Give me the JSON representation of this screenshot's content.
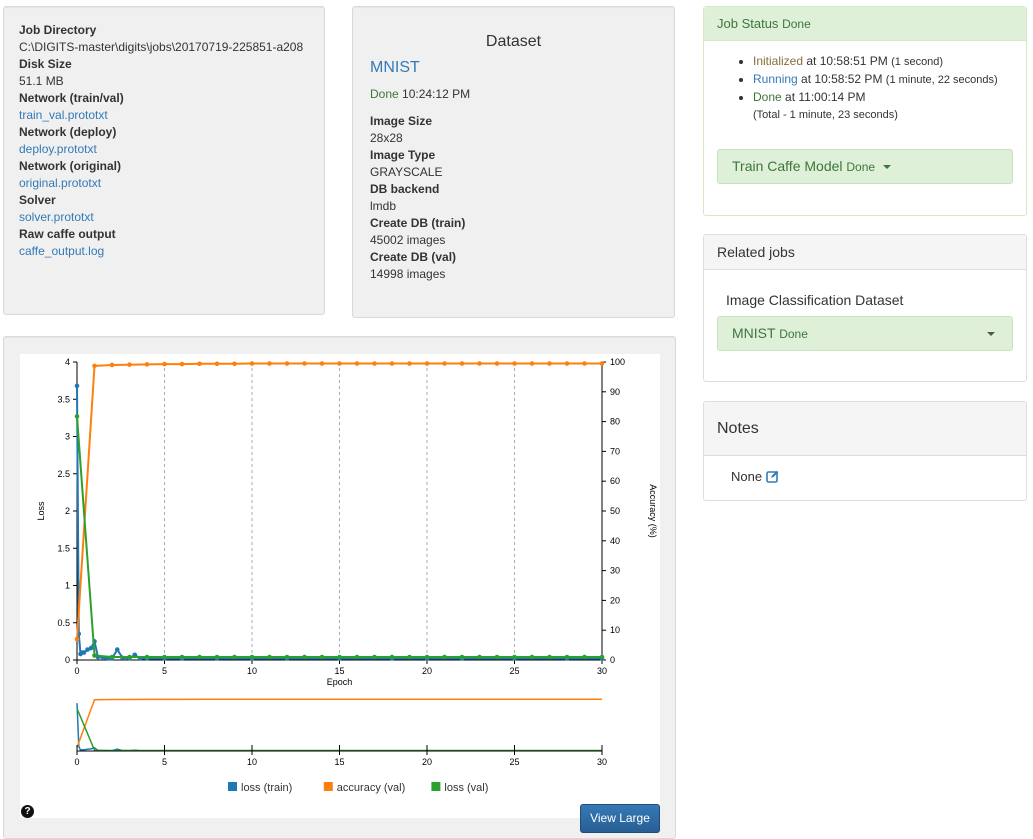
{
  "job_info": {
    "items": [
      {
        "label": "Job Directory",
        "value": "C:\\DIGITS-master\\digits\\jobs\\20170719-225851-a208",
        "is_link": false
      },
      {
        "label": "Disk Size",
        "value": "51.1 MB",
        "is_link": false
      },
      {
        "label": "Network (train/val)",
        "value": "train_val.prototxt",
        "is_link": true
      },
      {
        "label": "Network (deploy)",
        "value": "deploy.prototxt",
        "is_link": true
      },
      {
        "label": "Network (original)",
        "value": "original.prototxt",
        "is_link": true
      },
      {
        "label": "Solver",
        "value": "solver.prototxt",
        "is_link": true
      },
      {
        "label": "Raw caffe output",
        "value": "caffe_output.log",
        "is_link": true
      }
    ]
  },
  "dataset": {
    "heading": "Dataset",
    "name": "MNIST",
    "status": "Done",
    "time": "10:24:12 PM",
    "items": [
      {
        "label": "Image Size",
        "value": "28x28"
      },
      {
        "label": "Image Type",
        "value": "GRAYSCALE"
      },
      {
        "label": "DB backend",
        "value": "lmdb"
      },
      {
        "label": "Create DB (train)",
        "value": "45002 images"
      },
      {
        "label": "Create DB (val)",
        "value": "14998 images"
      }
    ]
  },
  "job_status": {
    "title": "Job Status",
    "status": "Done",
    "history": [
      {
        "state": "Initialized",
        "at": "at 10:58:51 PM",
        "duration": "(1 second)"
      },
      {
        "state": "Running",
        "at": "at 10:58:52 PM",
        "duration": "(1 minute, 22 seconds)"
      },
      {
        "state": "Done",
        "at": "at 11:00:14 PM",
        "duration": "(Total - 1 minute, 23 seconds)"
      }
    ],
    "task_button": {
      "label": "Train Caffe Model",
      "status": "Done"
    }
  },
  "related_jobs": {
    "title": "Related jobs",
    "label": "Image Classification Dataset",
    "button": {
      "label": "MNIST",
      "status": "Done"
    }
  },
  "notes": {
    "title": "Notes",
    "value": "None"
  },
  "graph": {
    "view_large_label": "View Large",
    "help_glyph": "?"
  },
  "colors": {
    "loss_train": "#1f77b4",
    "accuracy_val": "#ff7f0e",
    "loss_val": "#2ca02c"
  },
  "chart_data": {
    "type": "line",
    "xlabel": "Epoch",
    "ylabel": "Loss",
    "y2label": "Accuracy (%)",
    "xlim": [
      0,
      30
    ],
    "ylim": [
      0,
      4
    ],
    "y2lim": [
      0,
      100
    ],
    "x_ticks": [
      0,
      5,
      10,
      15,
      20,
      25,
      30
    ],
    "y_ticks": [
      "0",
      "0.5",
      "1",
      "1.5",
      "2",
      "2.5",
      "3",
      "3.5",
      "4"
    ],
    "y2_ticks": [
      "0",
      "10",
      "20",
      "30",
      "40",
      "50",
      "60",
      "70",
      "80",
      "90",
      "100"
    ],
    "legend_position": "bottom",
    "grid_x": true,
    "series": [
      {
        "name": "loss (train)",
        "axis": "left",
        "x": [
          0,
          0.1,
          0.2,
          0.3,
          0.4,
          0.6,
          0.8,
          1.0,
          1.2,
          1.5,
          1.8,
          2.0,
          2.3,
          2.6,
          3.0,
          3.3,
          3.6,
          4.0,
          5,
          6,
          8,
          10,
          12,
          15,
          18,
          20,
          22,
          25,
          28,
          30
        ],
        "values": [
          3.68,
          0.35,
          0.08,
          0.1,
          0.1,
          0.14,
          0.16,
          0.25,
          0.04,
          0.03,
          0.02,
          0.02,
          0.14,
          0.03,
          0.02,
          0.07,
          0.02,
          0.02,
          0.02,
          0.02,
          0.02,
          0.02,
          0.02,
          0.02,
          0.02,
          0.02,
          0.02,
          0.02,
          0.02,
          0.02
        ]
      },
      {
        "name": "accuracy (val)",
        "axis": "right",
        "x": [
          0,
          1,
          2,
          3,
          4,
          5,
          6,
          7,
          8,
          9,
          10,
          11,
          12,
          13,
          14,
          15,
          16,
          17,
          18,
          19,
          20,
          21,
          22,
          23,
          24,
          25,
          26,
          27,
          28,
          29,
          30
        ],
        "values": [
          7,
          98.7,
          99.0,
          99.1,
          99.2,
          99.3,
          99.3,
          99.4,
          99.4,
          99.4,
          99.5,
          99.5,
          99.5,
          99.5,
          99.5,
          99.5,
          99.5,
          99.5,
          99.5,
          99.5,
          99.5,
          99.5,
          99.5,
          99.5,
          99.5,
          99.5,
          99.5,
          99.5,
          99.5,
          99.5,
          99.5
        ]
      },
      {
        "name": "loss (val)",
        "axis": "left",
        "x": [
          0,
          1,
          2,
          3,
          4,
          5,
          6,
          7,
          8,
          9,
          10,
          11,
          12,
          13,
          14,
          15,
          16,
          17,
          18,
          19,
          20,
          21,
          22,
          23,
          24,
          25,
          26,
          27,
          28,
          29,
          30
        ],
        "values": [
          3.27,
          0.06,
          0.04,
          0.04,
          0.04,
          0.04,
          0.04,
          0.04,
          0.04,
          0.04,
          0.04,
          0.04,
          0.04,
          0.04,
          0.04,
          0.04,
          0.04,
          0.04,
          0.04,
          0.04,
          0.04,
          0.04,
          0.04,
          0.04,
          0.04,
          0.04,
          0.04,
          0.04,
          0.04,
          0.04,
          0.04
        ]
      }
    ]
  }
}
